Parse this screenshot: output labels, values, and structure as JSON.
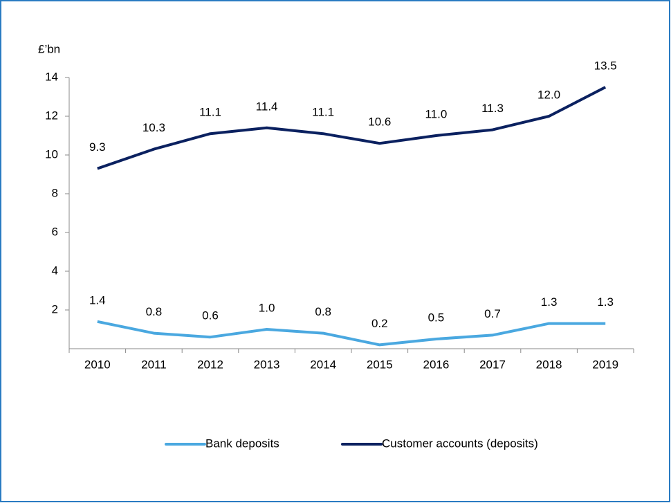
{
  "chart_data": {
    "type": "line",
    "y_label": "£’bn",
    "categories": [
      "2010",
      "2011",
      "2012",
      "2013",
      "2014",
      "2015",
      "2016",
      "2017",
      "2018",
      "2019"
    ],
    "series": [
      {
        "name": "Bank deposits",
        "color": "#4aa8e0",
        "values": [
          1.4,
          0.8,
          0.6,
          1.0,
          0.8,
          0.2,
          0.5,
          0.7,
          1.3,
          1.3
        ],
        "value_labels": [
          "1.4",
          "0.8",
          "0.6",
          "1.0",
          "0.8",
          "0.2",
          "0.5",
          "0.7",
          "1.3",
          "1.3"
        ]
      },
      {
        "name": "Customer accounts (deposits)",
        "color": "#0b2160",
        "values": [
          9.3,
          10.3,
          11.1,
          11.4,
          11.1,
          10.6,
          11.0,
          11.3,
          12.0,
          13.5
        ],
        "value_labels": [
          "9.3",
          "10.3",
          "11.1",
          "11.4",
          "11.1",
          "10.6",
          "11.0",
          "11.3",
          "12.0",
          "13.5"
        ]
      }
    ],
    "ylim": [
      0,
      14
    ],
    "yticks": [
      2,
      4,
      6,
      8,
      10,
      12,
      14
    ],
    "grid": false,
    "legend": "bottom"
  }
}
